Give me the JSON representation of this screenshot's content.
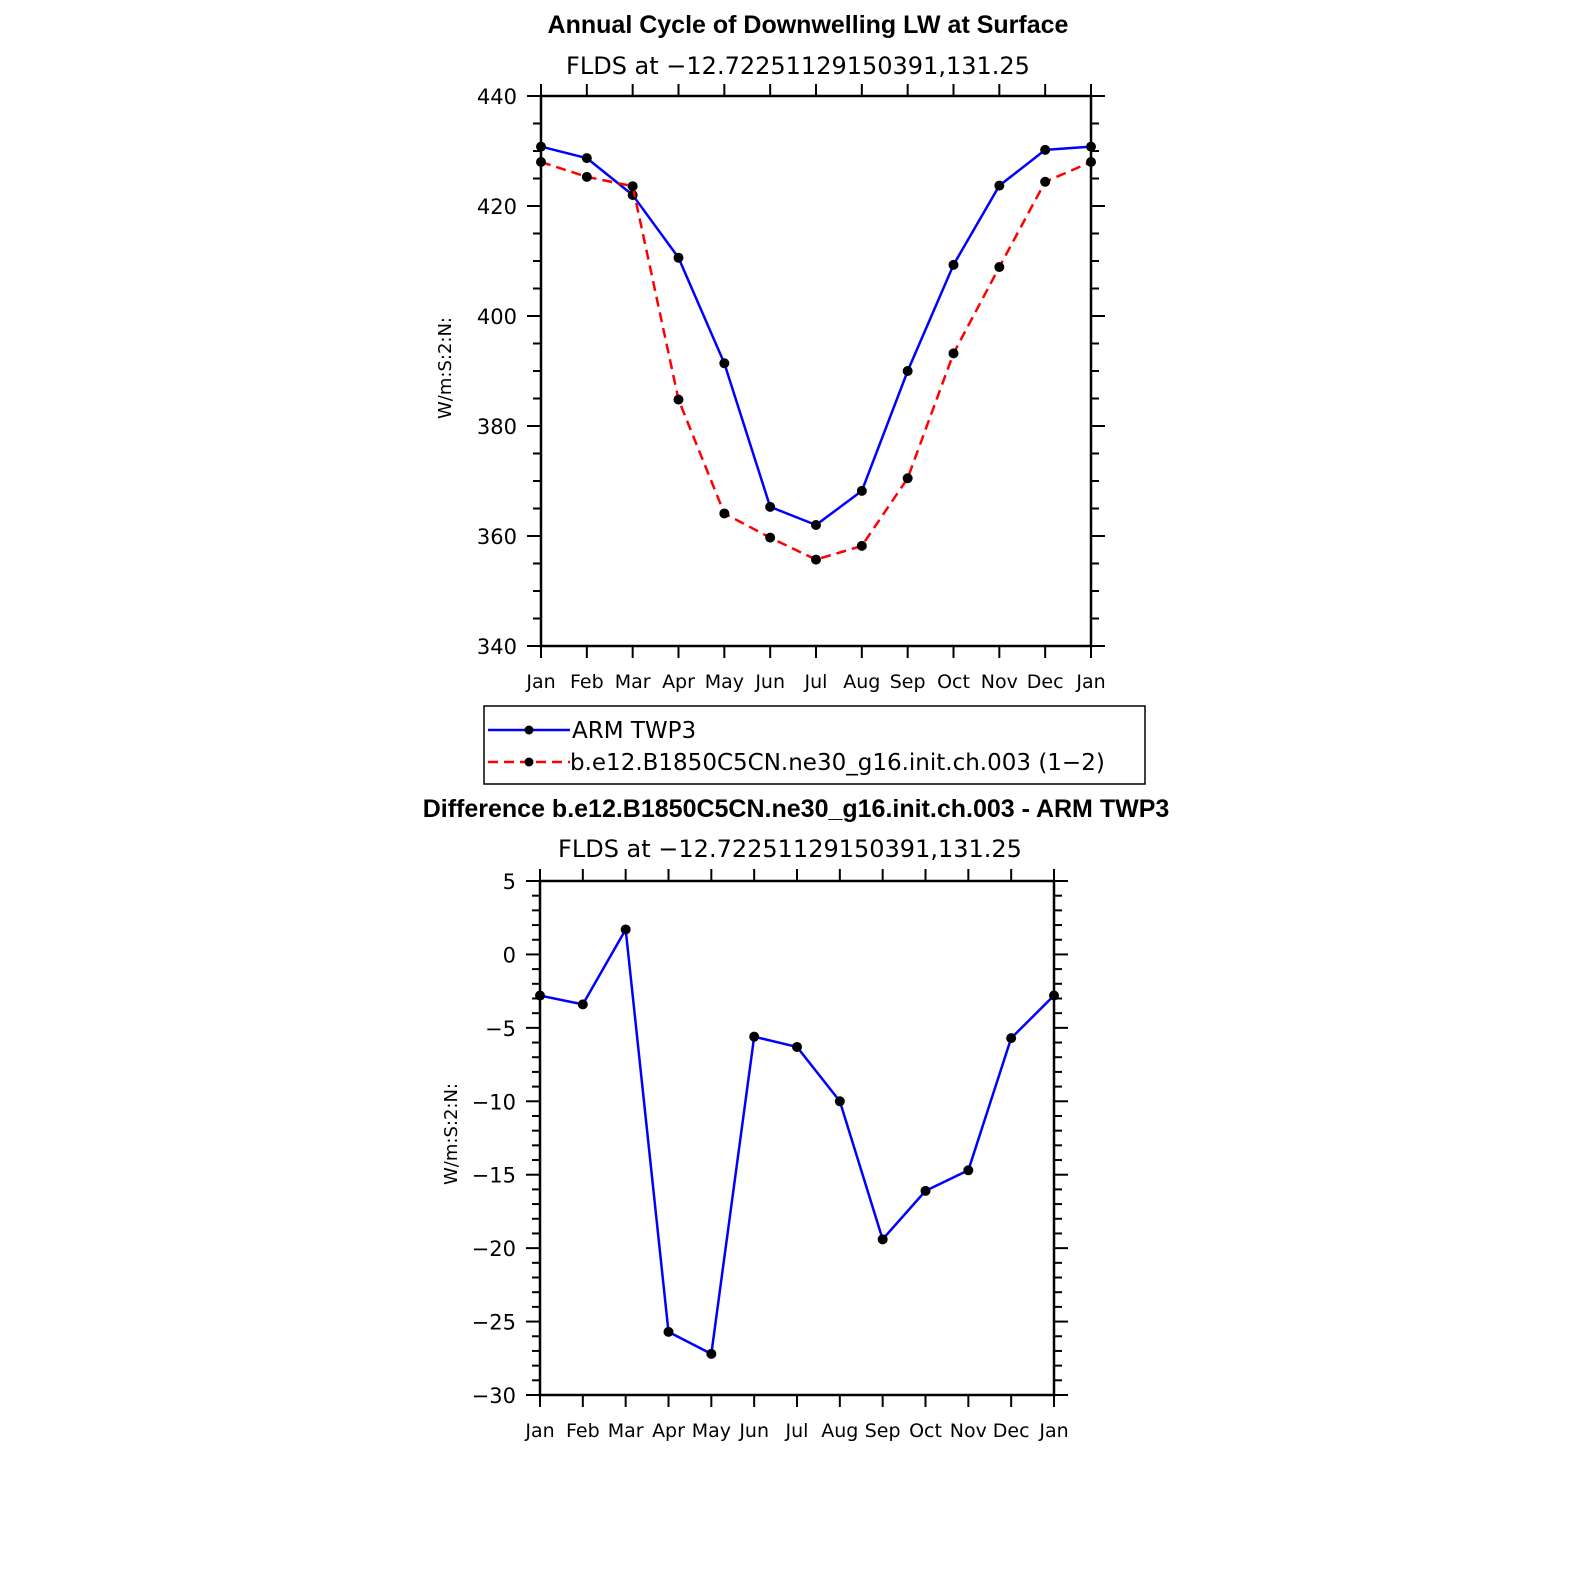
{
  "chart_data": [
    {
      "type": "line",
      "title": "Annual Cycle of Downwelling LW at Surface",
      "subtitle": "FLDS at −12.72251129150391,131.25",
      "xlabel": "",
      "ylabel": "W/m:S:2:N:",
      "categories": [
        "Jan",
        "Feb",
        "Mar",
        "Apr",
        "May",
        "Jun",
        "Jul",
        "Aug",
        "Sep",
        "Oct",
        "Nov",
        "Dec",
        "Jan"
      ],
      "ylim": [
        340,
        440
      ],
      "yticks": [
        "340",
        "360",
        "380",
        "400",
        "420",
        "440"
      ],
      "ytick_values": [
        340,
        360,
        380,
        400,
        420,
        440
      ],
      "grid": false,
      "legend_position": "below",
      "series": [
        {
          "name": "ARM TWP3",
          "color": "#0000ff",
          "dash": "solid",
          "values": [
            430.8,
            428.7,
            422.0,
            410.6,
            391.4,
            365.3,
            362.0,
            368.2,
            390.0,
            409.3,
            423.7,
            430.2,
            430.8
          ]
        },
        {
          "name": "b.e12.B1850C5CN.ne30_g16.init.ch.003 (1−2)",
          "color": "#ff0000",
          "dash": "dashed",
          "values": [
            428.0,
            425.3,
            423.6,
            384.8,
            364.1,
            359.7,
            355.7,
            358.2,
            370.5,
            393.2,
            408.9,
            424.4,
            428.0
          ]
        }
      ]
    },
    {
      "type": "line",
      "title": "Difference b.e12.B1850C5CN.ne30_g16.init.ch.003 - ARM TWP3",
      "subtitle": "FLDS at −12.72251129150391,131.25",
      "xlabel": "",
      "ylabel": "W/m:S:2:N:",
      "categories": [
        "Jan",
        "Feb",
        "Mar",
        "Apr",
        "May",
        "Jun",
        "Jul",
        "Aug",
        "Sep",
        "Oct",
        "Nov",
        "Dec",
        "Jan"
      ],
      "ylim": [
        -30,
        5
      ],
      "yticks": [
        "−30",
        "−25",
        "−20",
        "−15",
        "−10",
        "−5",
        "0",
        "5"
      ],
      "ytick_values": [
        -30,
        -25,
        -20,
        -15,
        -10,
        -5,
        0,
        5
      ],
      "grid": false,
      "series": [
        {
          "name": "",
          "color": "#0000ff",
          "dash": "solid",
          "values": [
            -2.8,
            -3.4,
            1.7,
            -25.7,
            -27.2,
            -5.6,
            -6.3,
            -10.0,
            -19.4,
            -16.1,
            -14.7,
            -5.7,
            -2.8
          ]
        }
      ]
    }
  ]
}
